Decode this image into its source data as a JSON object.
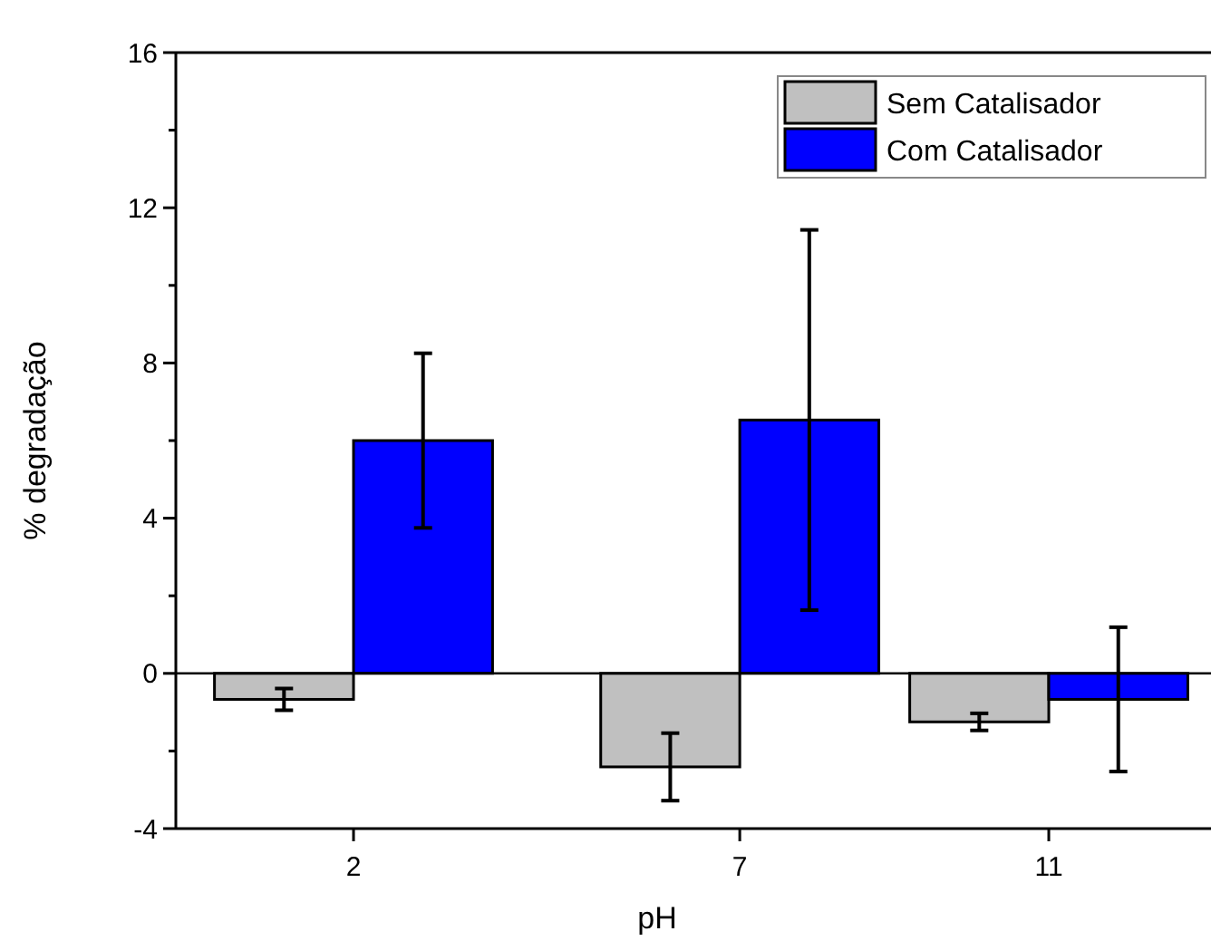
{
  "chart_data": {
    "type": "bar",
    "xlabel": "pH",
    "ylabel": "% degradação",
    "x": [
      2,
      7,
      11
    ],
    "series": [
      {
        "name": "Sem Catalisador",
        "color": "#c0c0c0",
        "values": [
          -0.67,
          -2.41,
          -1.25
        ],
        "errors": [
          0.28,
          0.87,
          0.22
        ]
      },
      {
        "name": "Com Catalisador",
        "color": "#0000ff",
        "values": [
          6.0,
          6.53,
          -0.67
        ],
        "errors": [
          2.25,
          4.9,
          1.86
        ]
      }
    ],
    "xlim": [
      -0.3,
      13.1
    ],
    "xticks": [
      2,
      7,
      11
    ],
    "ylim": [
      -4,
      16
    ],
    "yticks": [
      -4,
      {
        "value": -2,
        "label": null
      },
      0,
      {
        "value": 2,
        "label": null
      },
      4,
      {
        "value": 6,
        "label": null
      },
      8,
      {
        "value": 10,
        "label": null
      },
      12,
      {
        "value": 14,
        "label": null
      },
      16
    ],
    "legend": "top right"
  }
}
